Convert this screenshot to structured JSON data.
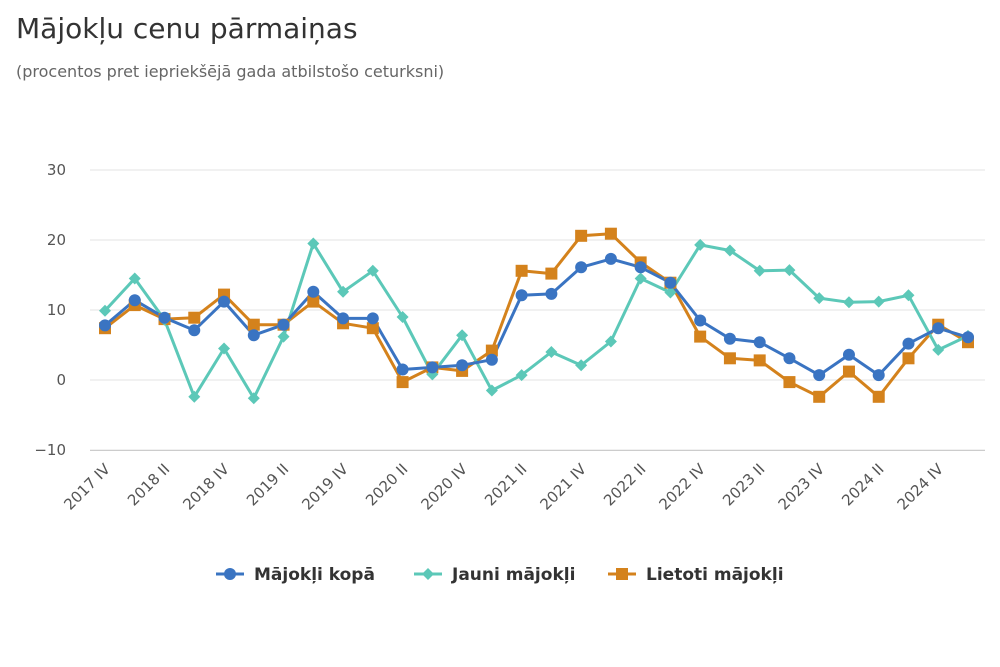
{
  "header": {
    "title": "Mājokļu cenu pārmaiņas",
    "subtitle": "(procentos pret iepriekšējā gada atbilstošo ceturksni)"
  },
  "chart_data": {
    "type": "line",
    "ylim": [
      -10,
      30
    ],
    "yticks": [
      30,
      20,
      10,
      0,
      -10
    ],
    "ytick_labels": [
      "30",
      "20",
      "10",
      "0",
      "−10"
    ],
    "grid": true,
    "legend_position": "bottom",
    "x": [
      "2017 IV",
      "2018 I",
      "2018 II",
      "2018 III",
      "2018 IV",
      "2019 I",
      "2019 II",
      "2019 III",
      "2019 IV",
      "2020 I",
      "2020 II",
      "2020 III",
      "2020 IV",
      "2021 I",
      "2021 II",
      "2021 III",
      "2021 IV",
      "2022 I",
      "2022 II",
      "2022 III",
      "2022 IV",
      "2023 I",
      "2023 II",
      "2023 III",
      "2023 IV",
      "2024 I",
      "2024 II",
      "2024 III",
      "2024 IV",
      "2025 I"
    ],
    "x_tick_labels": [
      "2017 IV",
      "2018 II",
      "2018 IV",
      "2019 II",
      "2019 IV",
      "2020 II",
      "2020 IV",
      "2021 II",
      "2021 IV",
      "2022 II",
      "2022 IV",
      "2023 II",
      "2023 IV",
      "2024 II",
      "2024 IV"
    ],
    "series": [
      {
        "name": "Mājokļi kopā",
        "color": "#3a74c2",
        "marker": "circle",
        "values": [
          7.8,
          11.4,
          8.9,
          7.1,
          11.2,
          6.4,
          7.9,
          12.6,
          8.8,
          8.8,
          1.5,
          1.8,
          2.1,
          2.9,
          12.1,
          12.3,
          16.1,
          17.3,
          16.1,
          13.9,
          8.5,
          5.9,
          5.4,
          3.1,
          0.7,
          3.6,
          0.7,
          5.2,
          7.4,
          6.1
        ]
      },
      {
        "name": "Jauni mājokļi",
        "color": "#5cc8b8",
        "marker": "diamond",
        "values": [
          9.9,
          14.5,
          8.6,
          -2.4,
          4.5,
          -2.6,
          6.2,
          19.5,
          12.6,
          15.6,
          9.0,
          0.8,
          6.4,
          -1.5,
          0.7,
          4.0,
          2.1,
          5.5,
          14.5,
          12.5,
          19.3,
          18.5,
          15.6,
          15.7,
          11.7,
          11.1,
          11.2,
          12.1,
          4.3,
          6.3
        ]
      },
      {
        "name": "Lietoti mājokļi",
        "color": "#d4821c",
        "marker": "square",
        "values": [
          7.4,
          10.7,
          8.7,
          8.9,
          12.2,
          7.9,
          7.9,
          11.2,
          8.1,
          7.4,
          -0.3,
          1.8,
          1.3,
          4.2,
          15.6,
          15.2,
          20.6,
          20.9,
          16.8,
          13.9,
          6.2,
          3.1,
          2.8,
          -0.3,
          -2.4,
          1.2,
          -2.4,
          3.1,
          7.9,
          5.4
        ]
      }
    ]
  }
}
